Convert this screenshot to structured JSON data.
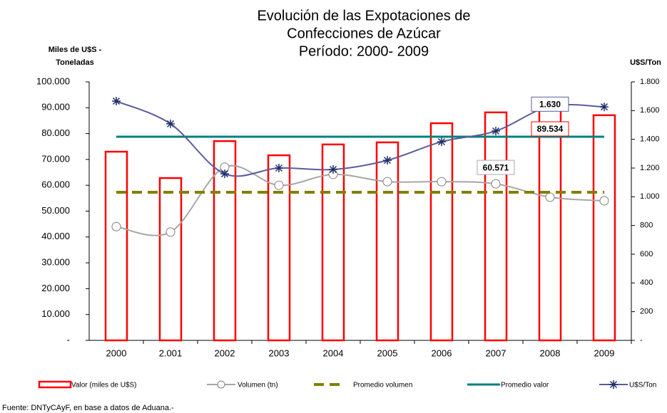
{
  "chart_data": {
    "type": "combo",
    "title": [
      "Evolución de las Expotaciones de",
      "Confecciones de Azúcar",
      "Período: 2000- 2009"
    ],
    "ylabel": [
      "Miles de U$S -",
      "Toneladas"
    ],
    "y2label": "U$S/Ton",
    "source": "Fuente: DNTyCAyF, en base a datos de Aduana.-",
    "categories": [
      "2000",
      "2.001",
      "2002",
      "2003",
      "2004",
      "2005",
      "2006",
      "2007",
      "2008",
      "2009"
    ],
    "series": [
      {
        "name": "Valor (miles de U$S)",
        "kind": "bar",
        "color": "#ff0000",
        "values": [
          73000,
          62800,
          77100,
          71600,
          75800,
          76600,
          84000,
          88200,
          89534,
          87100
        ],
        "value_labels": [
          null,
          null,
          null,
          null,
          null,
          null,
          null,
          null,
          "89.534",
          null
        ]
      },
      {
        "name": "Volumen (tn)",
        "kind": "line",
        "color": "#a6a6a6",
        "values": [
          44000,
          41900,
          67000,
          60000,
          64200,
          61400,
          61400,
          60571,
          55400,
          54000
        ],
        "value_labels": [
          null,
          null,
          null,
          null,
          null,
          null,
          null,
          "60.571",
          null,
          null
        ]
      },
      {
        "name": "Promedio volumen",
        "kind": "dashed",
        "color": "#808000",
        "values": [
          57300,
          57300,
          57300,
          57300,
          57300,
          57300,
          57300,
          57300,
          57300,
          57300
        ]
      },
      {
        "name": "Promedio valor",
        "kind": "flat",
        "color": "#008080",
        "values": [
          78800,
          78800,
          78800,
          78800,
          78800,
          78800,
          78800,
          78800,
          78800,
          78800
        ]
      },
      {
        "name": "U$S/Ton",
        "kind": "star",
        "axis": "y2",
        "color": "#5b5b9b",
        "values": [
          1666,
          1508,
          1160,
          1200,
          1190,
          1254,
          1383,
          1458,
          1630,
          1626
        ],
        "value_labels": [
          null,
          null,
          null,
          null,
          null,
          null,
          null,
          null,
          "1.630",
          null
        ]
      }
    ],
    "ylim": [
      0,
      100000
    ],
    "yticks": [
      {
        "value": 0,
        "label": "-"
      },
      {
        "value": 10000,
        "label": "10.000"
      },
      {
        "value": 20000,
        "label": "20.000"
      },
      {
        "value": 30000,
        "label": "30.000"
      },
      {
        "value": 40000,
        "label": "40.000"
      },
      {
        "value": 50000,
        "label": "50.000"
      },
      {
        "value": 60000,
        "label": "60.000"
      },
      {
        "value": 70000,
        "label": "70.000"
      },
      {
        "value": 80000,
        "label": "80.000"
      },
      {
        "value": 90000,
        "label": "90.000"
      },
      {
        "value": 100000,
        "label": "100.000"
      }
    ],
    "y2lim": [
      0,
      1800
    ],
    "y2ticks": [
      {
        "value": 0,
        "label": "-"
      },
      200,
      400,
      600,
      800,
      {
        "value": 1000,
        "label": "1.000"
      },
      {
        "value": 1200,
        "label": "1.200"
      },
      {
        "value": 1400,
        "label": "1.400"
      },
      {
        "value": 1600,
        "label": "1.600"
      },
      {
        "value": 1800,
        "label": "1.800"
      }
    ]
  }
}
